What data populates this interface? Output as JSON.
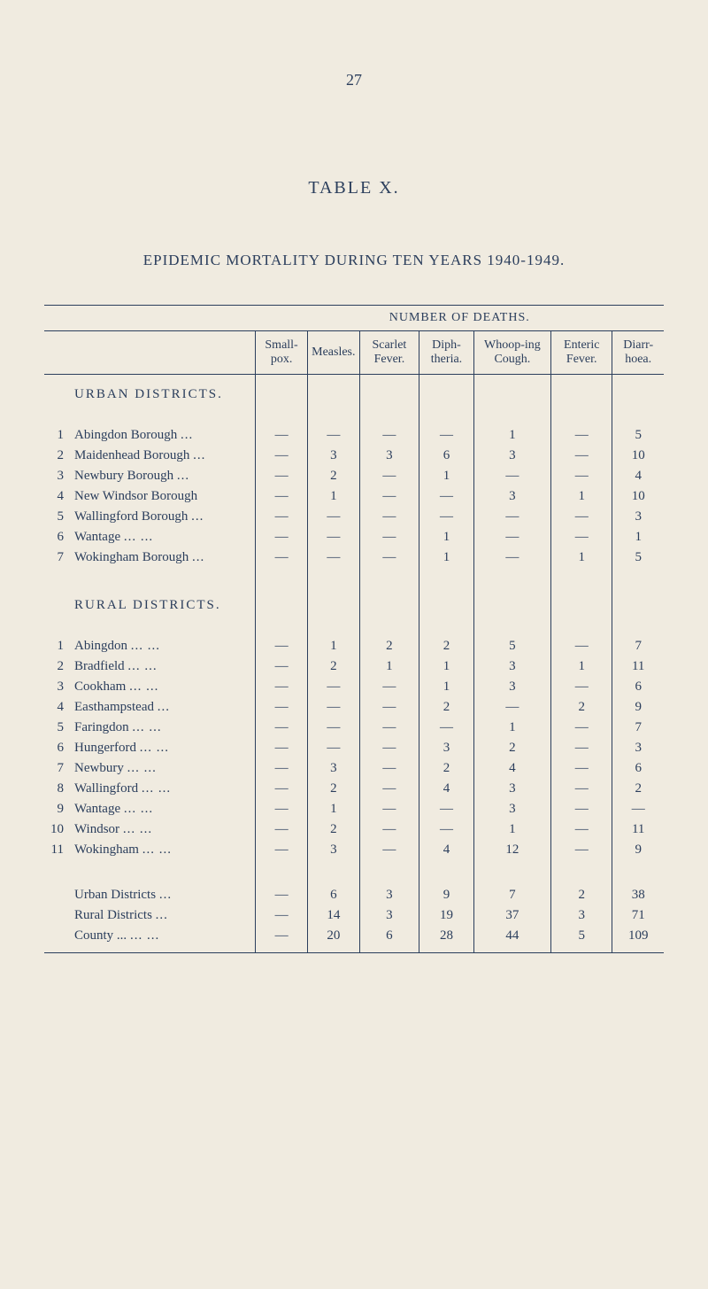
{
  "page_number": "27",
  "table_label": "TABLE X.",
  "table_title": "EPIDEMIC MORTALITY DURING TEN YEARS 1940-1949.",
  "header_spanning": "NUMBER OF DEATHS.",
  "columns": {
    "smallpox": "Small-pox.",
    "measles": "Measles.",
    "scarlet": "Scarlet Fever.",
    "diph": "Diph-theria.",
    "whoop": "Whoop-ing Cough.",
    "enteric": "Enteric Fever.",
    "diarr": "Diarr-hoea."
  },
  "urban_label": "URBAN DISTRICTS.",
  "rural_label": "RURAL DISTRICTS.",
  "urban_rows": [
    {
      "num": "1",
      "name": "Abingdon Borough",
      "dots": "...",
      "smallpox": "—",
      "measles": "—",
      "scarlet": "—",
      "diph": "—",
      "whoop": "1",
      "enteric": "—",
      "diarr": "5"
    },
    {
      "num": "2",
      "name": "Maidenhead Borough",
      "dots": "...",
      "smallpox": "—",
      "measles": "3",
      "scarlet": "3",
      "diph": "6",
      "whoop": "3",
      "enteric": "—",
      "diarr": "10"
    },
    {
      "num": "3",
      "name": "Newbury Borough",
      "dots": "...",
      "smallpox": "—",
      "measles": "2",
      "scarlet": "—",
      "diph": "1",
      "whoop": "—",
      "enteric": "—",
      "diarr": "4"
    },
    {
      "num": "4",
      "name": "New Windsor Borough",
      "dots": "",
      "smallpox": "—",
      "measles": "1",
      "scarlet": "—",
      "diph": "—",
      "whoop": "3",
      "enteric": "1",
      "diarr": "10"
    },
    {
      "num": "5",
      "name": "Wallingford Borough",
      "dots": "...",
      "smallpox": "—",
      "measles": "—",
      "scarlet": "—",
      "diph": "—",
      "whoop": "—",
      "enteric": "—",
      "diarr": "3"
    },
    {
      "num": "6",
      "name": "Wantage",
      "dots": "...   ...",
      "smallpox": "—",
      "measles": "—",
      "scarlet": "—",
      "diph": "1",
      "whoop": "—",
      "enteric": "—",
      "diarr": "1"
    },
    {
      "num": "7",
      "name": "Wokingham Borough",
      "dots": "...",
      "smallpox": "—",
      "measles": "—",
      "scarlet": "—",
      "diph": "1",
      "whoop": "—",
      "enteric": "1",
      "diarr": "5"
    }
  ],
  "rural_rows": [
    {
      "num": "1",
      "name": "Abingdon",
      "dots": "...   ...",
      "smallpox": "—",
      "measles": "1",
      "scarlet": "2",
      "diph": "2",
      "whoop": "5",
      "enteric": "—",
      "diarr": "7"
    },
    {
      "num": "2",
      "name": "Bradfield",
      "dots": "...   ...",
      "smallpox": "—",
      "measles": "2",
      "scarlet": "1",
      "diph": "1",
      "whoop": "3",
      "enteric": "1",
      "diarr": "11"
    },
    {
      "num": "3",
      "name": "Cookham",
      "dots": "...   ...",
      "smallpox": "—",
      "measles": "—",
      "scarlet": "—",
      "diph": "1",
      "whoop": "3",
      "enteric": "—",
      "diarr": "6"
    },
    {
      "num": "4",
      "name": "Easthampstead",
      "dots": "...",
      "smallpox": "—",
      "measles": "—",
      "scarlet": "—",
      "diph": "2",
      "whoop": "—",
      "enteric": "2",
      "diarr": "9"
    },
    {
      "num": "5",
      "name": "Faringdon",
      "dots": "...   ...",
      "smallpox": "—",
      "measles": "—",
      "scarlet": "—",
      "diph": "—",
      "whoop": "1",
      "enteric": "—",
      "diarr": "7"
    },
    {
      "num": "6",
      "name": "Hungerford",
      "dots": "...   ...",
      "smallpox": "—",
      "measles": "—",
      "scarlet": "—",
      "diph": "3",
      "whoop": "2",
      "enteric": "—",
      "diarr": "3"
    },
    {
      "num": "7",
      "name": "Newbury",
      "dots": "...   ...",
      "smallpox": "—",
      "measles": "3",
      "scarlet": "—",
      "diph": "2",
      "whoop": "4",
      "enteric": "—",
      "diarr": "6"
    },
    {
      "num": "8",
      "name": "Wallingford",
      "dots": "...   ...",
      "smallpox": "—",
      "measles": "2",
      "scarlet": "—",
      "diph": "4",
      "whoop": "3",
      "enteric": "—",
      "diarr": "2"
    },
    {
      "num": "9",
      "name": "Wantage",
      "dots": "...   ...",
      "smallpox": "—",
      "measles": "1",
      "scarlet": "—",
      "diph": "—",
      "whoop": "3",
      "enteric": "—",
      "diarr": "—"
    },
    {
      "num": "10",
      "name": "Windsor",
      "dots": "...   ...",
      "smallpox": "—",
      "measles": "2",
      "scarlet": "—",
      "diph": "—",
      "whoop": "1",
      "enteric": "—",
      "diarr": "11"
    },
    {
      "num": "11",
      "name": "Wokingham",
      "dots": "...   ...",
      "smallpox": "—",
      "measles": "3",
      "scarlet": "—",
      "diph": "4",
      "whoop": "12",
      "enteric": "—",
      "diarr": "9"
    }
  ],
  "summary_rows": [
    {
      "name": "Urban Districts",
      "dots": "...",
      "smallpox": "—",
      "measles": "6",
      "scarlet": "3",
      "diph": "9",
      "whoop": "7",
      "enteric": "2",
      "diarr": "38"
    },
    {
      "name": "Rural Districts",
      "dots": "...",
      "smallpox": "—",
      "measles": "14",
      "scarlet": "3",
      "diph": "19",
      "whoop": "37",
      "enteric": "3",
      "diarr": "71"
    },
    {
      "name": "County ...",
      "dots": "...   ...",
      "smallpox": "—",
      "measles": "20",
      "scarlet": "6",
      "diph": "28",
      "whoop": "44",
      "enteric": "5",
      "diarr": "109"
    }
  ]
}
